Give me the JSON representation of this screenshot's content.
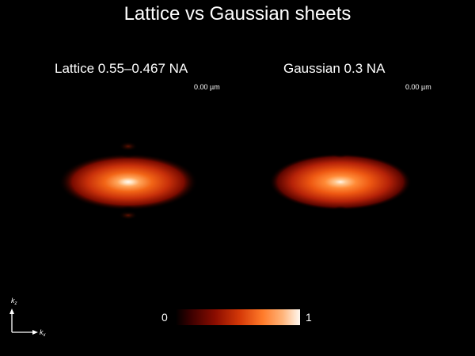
{
  "title": "Lattice vs Gaussian sheets",
  "panels": [
    {
      "title": "Lattice 0.55–0.467 NA",
      "depth": "0.00 µm"
    },
    {
      "title": "Gaussian 0.3 NA",
      "depth": "0.00 µm"
    }
  ],
  "colorbar": {
    "min": "0",
    "max": "1"
  },
  "axes": {
    "vertical": "k",
    "vertical_sub": "z",
    "horizontal": "k",
    "horizontal_sub": "x"
  },
  "colors": {
    "background": "#000000",
    "peak": "#fffaf2",
    "mid": "#e8460a",
    "low": "#5a0000"
  }
}
